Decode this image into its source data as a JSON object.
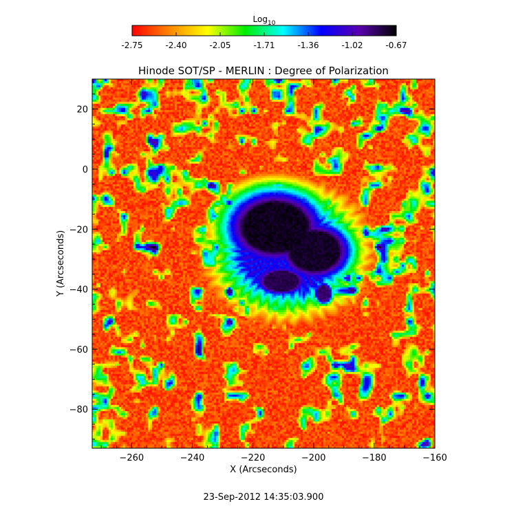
{
  "chart_data": {
    "type": "heatmap",
    "title": "Hinode SOT/SP - MERLIN : Degree of Polarization",
    "xlabel": "X (Arcseconds)",
    "ylabel": "Y (Arcseconds)",
    "xlim": [
      -273,
      -160
    ],
    "ylim": [
      -93,
      30
    ],
    "xticks": [
      -260,
      -240,
      -220,
      -200,
      -180,
      -160
    ],
    "yticks": [
      20,
      0,
      -20,
      -40,
      -60,
      -80
    ],
    "colorbar": {
      "title": "Log",
      "title_subscript": "10",
      "range": [
        -2.75,
        -0.67
      ],
      "ticks": [
        "-2.75",
        "-2.40",
        "-2.05",
        "-1.71",
        "-1.36",
        "-1.02",
        "-0.67"
      ],
      "colormap": [
        "#ff0000",
        "#ff8800",
        "#ffff00",
        "#00ee00",
        "#00ffff",
        "#0000ff",
        "#5a00b0",
        "#000000"
      ]
    },
    "features": [
      {
        "kind": "umbra",
        "x": -213,
        "y": -19,
        "rx": 13,
        "ry": 10,
        "value": -0.72
      },
      {
        "kind": "umbra",
        "x": -200,
        "y": -27,
        "rx": 10,
        "ry": 8,
        "value": -0.74
      },
      {
        "kind": "umbra",
        "x": -211,
        "y": -37,
        "rx": 7,
        "ry": 4,
        "value": -0.8
      },
      {
        "kind": "umbra",
        "x": -197,
        "y": -41,
        "rx": 2.5,
        "ry": 3,
        "value": -0.85
      },
      {
        "kind": "penumbra",
        "x": -209,
        "y": -27,
        "rx": 27,
        "ry": 23,
        "value": -1.2
      }
    ],
    "timestamp": "23-Sep-2012 14:35:03.900"
  }
}
